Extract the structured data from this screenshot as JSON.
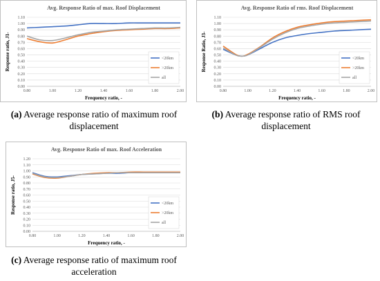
{
  "chart_data": [
    {
      "type": "line",
      "title": "Avg. Response Ratio of max. Roof Displacement",
      "xlabel": "Frequency ratio, -",
      "ylabel": "Response ratio, J1-",
      "xlim": [
        0.8,
        2.0
      ],
      "ylim": [
        0.0,
        1.1
      ],
      "x_ticks": [
        "0.80",
        "1.00",
        "1.20",
        "1.40",
        "1.60",
        "1.80",
        "2.00"
      ],
      "y_ticks": [
        "0.00",
        "0.10",
        "0.20",
        "0.30",
        "0.40",
        "0.50",
        "0.60",
        "0.70",
        "0.80",
        "0.90",
        "1.00",
        "1.10"
      ],
      "grid": true,
      "legend": "bottom-right",
      "x": [
        0.8,
        0.9,
        1.0,
        1.1,
        1.2,
        1.3,
        1.4,
        1.5,
        1.6,
        1.7,
        1.8,
        1.9,
        2.0
      ],
      "series": [
        {
          "name": "<20km",
          "color": "#4472c4",
          "values": [
            0.93,
            0.94,
            0.95,
            0.96,
            0.98,
            1.0,
            1.0,
            1.0,
            1.01,
            1.01,
            1.01,
            1.01,
            1.01
          ]
        },
        {
          "name": ">20km",
          "color": "#ed7d31",
          "values": [
            0.76,
            0.71,
            0.69,
            0.74,
            0.8,
            0.84,
            0.87,
            0.89,
            0.9,
            0.91,
            0.92,
            0.92,
            0.93
          ]
        },
        {
          "name": "all",
          "color": "#a5a5a5",
          "values": [
            0.8,
            0.74,
            0.73,
            0.77,
            0.82,
            0.86,
            0.88,
            0.9,
            0.91,
            0.92,
            0.93,
            0.93,
            0.94
          ]
        }
      ]
    },
    {
      "type": "line",
      "title": "Avg. Response Ratio of rms. Roof Displacement",
      "xlabel": "Frequency ratio, -",
      "ylabel": "Response Ratio, J3-",
      "xlim": [
        0.8,
        2.0
      ],
      "ylim": [
        0.0,
        1.1
      ],
      "x_ticks": [
        "0.80",
        "1.00",
        "1.20",
        "1.40",
        "1.60",
        "1.80",
        "2.00"
      ],
      "y_ticks": [
        "0.00",
        "0.10",
        "0.20",
        "0.30",
        "0.40",
        "0.50",
        "0.60",
        "0.70",
        "0.80",
        "0.90",
        "1.00",
        "1.10"
      ],
      "grid": true,
      "legend": "bottom-right",
      "x": [
        0.8,
        0.9,
        0.95,
        1.0,
        1.1,
        1.2,
        1.3,
        1.4,
        1.5,
        1.6,
        1.7,
        1.8,
        1.9,
        2.0
      ],
      "series": [
        {
          "name": "<20km",
          "color": "#4472c4",
          "values": [
            0.59,
            0.5,
            0.48,
            0.5,
            0.6,
            0.7,
            0.77,
            0.81,
            0.84,
            0.86,
            0.88,
            0.89,
            0.9,
            0.91
          ]
        },
        {
          "name": ">20km",
          "color": "#ed7d31",
          "values": [
            0.64,
            0.51,
            0.48,
            0.51,
            0.63,
            0.77,
            0.87,
            0.94,
            0.98,
            1.01,
            1.03,
            1.04,
            1.05,
            1.06
          ]
        },
        {
          "name": "all",
          "color": "#a5a5a5",
          "values": [
            0.61,
            0.5,
            0.48,
            0.5,
            0.62,
            0.75,
            0.85,
            0.92,
            0.96,
            0.99,
            1.01,
            1.02,
            1.03,
            1.04
          ]
        }
      ]
    },
    {
      "type": "line",
      "title": "Avg. Response Ratio of max. Roof Acceleration",
      "xlabel": "Frequency ratio, -",
      "ylabel": "Response ratio, J5-",
      "xlim": [
        0.8,
        2.0
      ],
      "ylim": [
        0.0,
        1.2
      ],
      "x_ticks": [
        "0.80",
        "1.00",
        "1.20",
        "1.40",
        "1.60",
        "1.80",
        "2.00"
      ],
      "y_ticks": [
        "0.00",
        "0.10",
        "0.20",
        "0.30",
        "0.40",
        "0.50",
        "0.60",
        "0.70",
        "0.80",
        "0.90",
        "1.00",
        "1.10",
        "1.20"
      ],
      "grid": true,
      "legend": "bottom-right",
      "x": [
        0.8,
        0.9,
        1.0,
        1.1,
        1.2,
        1.3,
        1.4,
        1.5,
        1.6,
        1.7,
        1.8,
        1.9,
        2.0
      ],
      "series": [
        {
          "name": "<20km",
          "color": "#4472c4",
          "values": [
            0.97,
            0.91,
            0.9,
            0.92,
            0.94,
            0.95,
            0.96,
            0.96,
            0.97,
            0.97,
            0.97,
            0.97,
            0.97
          ]
        },
        {
          "name": ">20km",
          "color": "#ed7d31",
          "values": [
            0.95,
            0.89,
            0.88,
            0.91,
            0.94,
            0.96,
            0.97,
            0.97,
            0.98,
            0.98,
            0.98,
            0.98,
            0.98
          ]
        },
        {
          "name": "all",
          "color": "#a5a5a5",
          "values": [
            0.96,
            0.9,
            0.89,
            0.91,
            0.94,
            0.95,
            0.96,
            0.97,
            0.97,
            0.97,
            0.97,
            0.97,
            0.97
          ]
        }
      ]
    }
  ],
  "captions": [
    {
      "tag": "(a)",
      "text": " Average response ratio of maximum roof displacement"
    },
    {
      "tag": "(b)",
      "text": " Average response ratio of RMS roof displacement"
    },
    {
      "tag": "(c)",
      "text": " Average response ratio of maximum roof acceleration"
    }
  ]
}
